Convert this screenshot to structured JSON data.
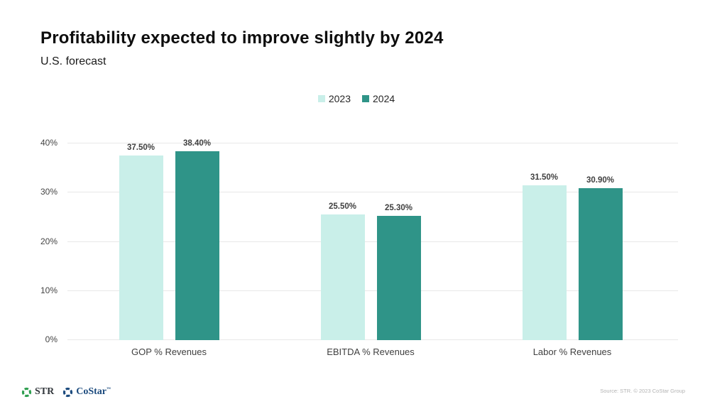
{
  "header": {
    "title": "Profitability expected to improve slightly by 2024",
    "subtitle": "U.S. forecast"
  },
  "legend": [
    {
      "label": "2023",
      "color": "#c9efe9"
    },
    {
      "label": "2024",
      "color": "#2f9488"
    }
  ],
  "chart_data": {
    "type": "bar",
    "title": "Profitability expected to improve slightly by 2024",
    "subtitle": "U.S. forecast",
    "categories": [
      "GOP % Revenues",
      "EBITDA % Revenues",
      "Labor % Revenues"
    ],
    "series": [
      {
        "name": "2023",
        "color": "#c9efe9",
        "values": [
          37.5,
          25.5,
          31.5
        ],
        "labels": [
          "37.50%",
          "25.50%",
          "31.50%"
        ]
      },
      {
        "name": "2024",
        "color": "#2f9488",
        "values": [
          38.4,
          25.3,
          30.9
        ],
        "labels": [
          "38.40%",
          "25.30%",
          "30.90%"
        ]
      }
    ],
    "xlabel": "",
    "ylabel": "",
    "ylim": [
      0,
      40
    ],
    "y_ticks": [
      "0%",
      "10%",
      "20%",
      "30%",
      "40%"
    ],
    "grid": true,
    "legend_position": "top-center"
  },
  "footer": {
    "str_label": "STR",
    "costar_label": "CoStar",
    "costar_tm": "™",
    "source": "Source: STR. © 2023 CoStar Group"
  },
  "colors": {
    "bar_2023": "#c9efe9",
    "bar_2024": "#2f9488",
    "gridline": "#e8e8e8",
    "str_green": "#2e9e4f",
    "costar_blue": "#1c4b7e"
  }
}
